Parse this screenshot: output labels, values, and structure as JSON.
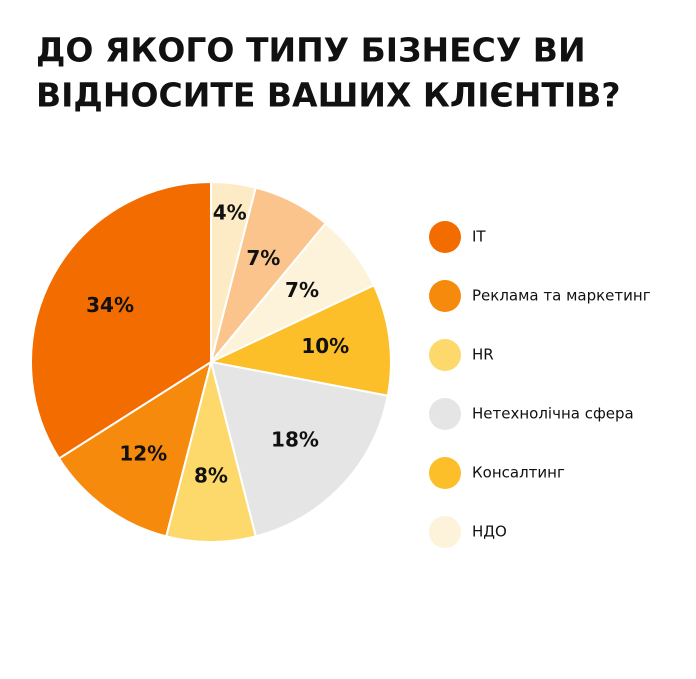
{
  "chart_data": {
    "type": "pie",
    "title": [
      "ДО ЯКОГО ТИПУ БІЗНЕСУ ВИ",
      "ВІДНОСИТЕ ВАШИХ КЛІЄНТІВ?"
    ],
    "categories": [
      null,
      null,
      "НДО",
      "Консалтинг",
      "Нетехнолічна сфера",
      "HR",
      "Реклама та маркетинг",
      "IT"
    ],
    "values": [
      4,
      7,
      7,
      10,
      18,
      8,
      12,
      34
    ],
    "value_labels": [
      "4%",
      "7%",
      "7%",
      "10%",
      "18%",
      "8%",
      "12%",
      "34%"
    ],
    "colors": [
      "#fdebc6",
      "#fbc48c",
      "#fdf2da",
      "#fcbf2a",
      "#e5e5e5",
      "#fdd96c",
      "#f58a0c",
      "#f26c00"
    ]
  }
}
